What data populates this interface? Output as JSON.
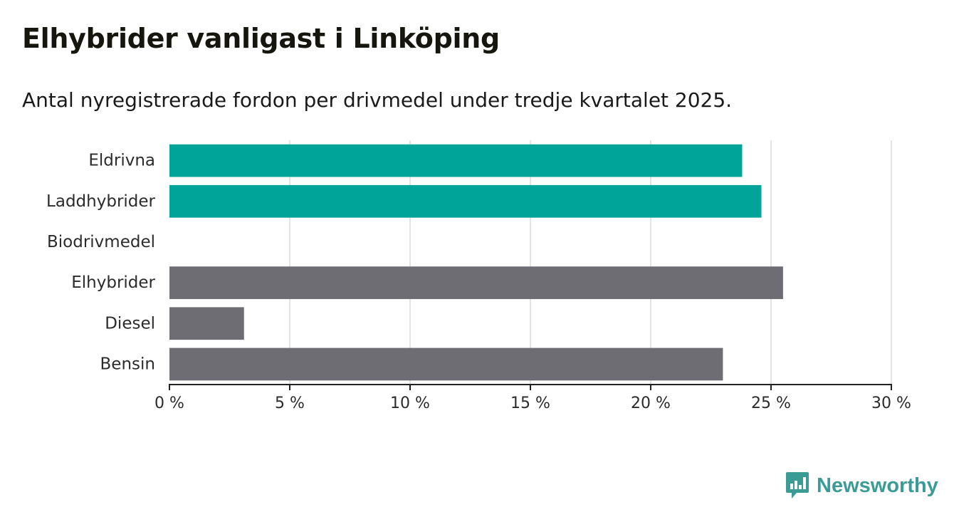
{
  "title": "Elhybrider vanligast i Linköping",
  "subtitle": "Antal nyregistrerade fordon per drivmedel under tredje kvartalet 2025.",
  "brand": {
    "name": "Newsworthy",
    "icon": "newsworthy-logo-icon",
    "color": "#3b9c96"
  },
  "colors": {
    "highlight": "#00a499",
    "default": "#6e6d73",
    "grid": "#dcdcdc",
    "axis": "#222222"
  },
  "chart_data": {
    "type": "bar",
    "orientation": "horizontal",
    "categories": [
      "Eldrivna",
      "Laddhybrider",
      "Biodrivmedel",
      "Elhybrider",
      "Diesel",
      "Bensin"
    ],
    "values": [
      23.8,
      24.6,
      0,
      25.5,
      3.1,
      23.0
    ],
    "highlight": [
      true,
      true,
      false,
      false,
      false,
      false
    ],
    "xlim": [
      0,
      30
    ],
    "xticks": [
      0,
      5,
      10,
      15,
      20,
      25,
      30
    ],
    "xtick_labels": [
      "0 %",
      "5 %",
      "10 %",
      "15 %",
      "20 %",
      "25 %",
      "30 %"
    ],
    "unit": "%",
    "grid": true
  }
}
